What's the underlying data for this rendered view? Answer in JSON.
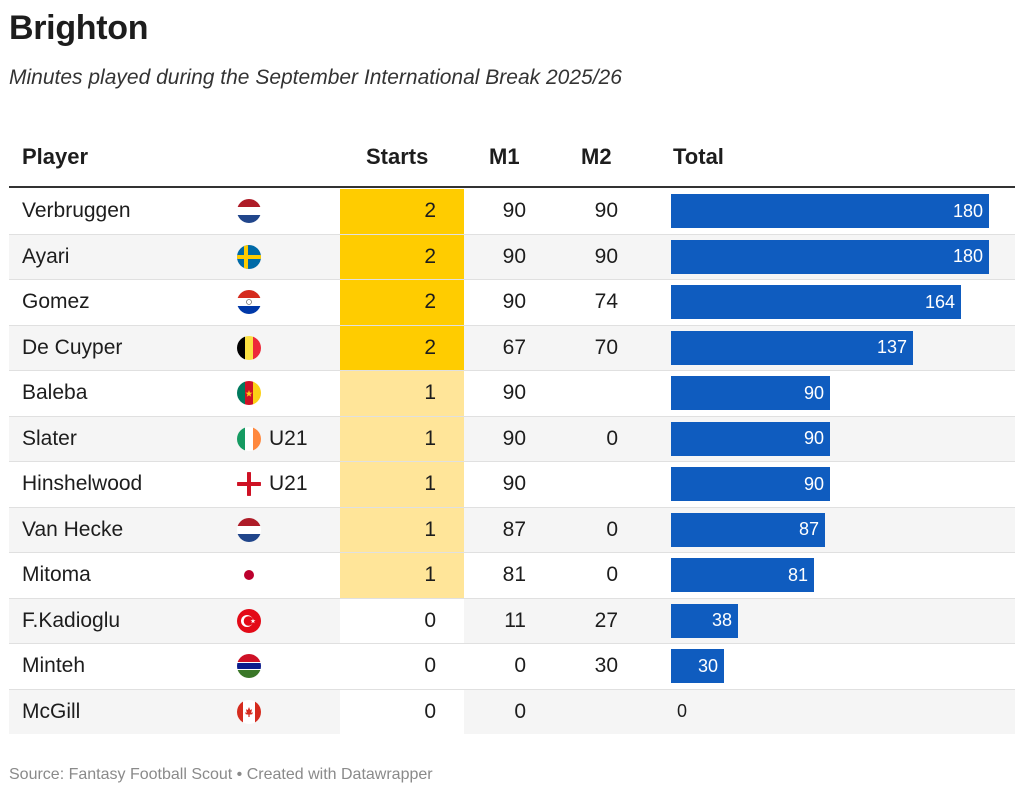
{
  "title": "Brighton",
  "subtitle": "Minutes played during the September International Break 2025/26",
  "columns": {
    "player": "Player",
    "starts": "Starts",
    "m1": "M1",
    "m2": "M2",
    "total": "Total"
  },
  "colors": {
    "bar": "#0f5cbf",
    "starts_2": "#ffcc00",
    "starts_1": "#ffe599",
    "starts_0": "#ffffff",
    "row_alt": "#f5f5f5"
  },
  "footer": "Source: Fantasy Football Scout • Created with Datawrapper",
  "chart_data": {
    "type": "table",
    "title": "Brighton",
    "subtitle": "Minutes played during the September International Break 2025/26",
    "total_max": 180,
    "rows": [
      {
        "player": "Verbruggen",
        "flag": "netherlands-flag-icon",
        "tag": "",
        "starts": 2,
        "m1": "90",
        "m2": "90",
        "total": 180
      },
      {
        "player": "Ayari",
        "flag": "sweden-flag-icon",
        "tag": "",
        "starts": 2,
        "m1": "90",
        "m2": "90",
        "total": 180
      },
      {
        "player": "Gomez",
        "flag": "paraguay-flag-icon",
        "tag": "",
        "starts": 2,
        "m1": "90",
        "m2": "74",
        "total": 164
      },
      {
        "player": "De Cuyper",
        "flag": "belgium-flag-icon",
        "tag": "",
        "starts": 2,
        "m1": "67",
        "m2": "70",
        "total": 137
      },
      {
        "player": "Baleba",
        "flag": "cameroon-flag-icon",
        "tag": "",
        "starts": 1,
        "m1": "90",
        "m2": "",
        "total": 90
      },
      {
        "player": "Slater",
        "flag": "ireland-flag-icon",
        "tag": "U21",
        "starts": 1,
        "m1": "90",
        "m2": "0",
        "total": 90
      },
      {
        "player": "Hinshelwood",
        "flag": "england-flag-icon",
        "tag": "U21",
        "starts": 1,
        "m1": "90",
        "m2": "",
        "total": 90
      },
      {
        "player": "Van Hecke",
        "flag": "netherlands-flag-icon",
        "tag": "",
        "starts": 1,
        "m1": "87",
        "m2": "0",
        "total": 87
      },
      {
        "player": "Mitoma",
        "flag": "japan-flag-icon",
        "tag": "",
        "starts": 1,
        "m1": "81",
        "m2": "0",
        "total": 81
      },
      {
        "player": "F.Kadioglu",
        "flag": "turkey-flag-icon",
        "tag": "",
        "starts": 0,
        "m1": "11",
        "m2": "27",
        "total": 38
      },
      {
        "player": "Minteh",
        "flag": "gambia-flag-icon",
        "tag": "",
        "starts": 0,
        "m1": "0",
        "m2": "30",
        "total": 30
      },
      {
        "player": "McGill",
        "flag": "canada-flag-icon",
        "tag": "",
        "starts": 0,
        "m1": "0",
        "m2": "",
        "total": 0
      }
    ]
  }
}
